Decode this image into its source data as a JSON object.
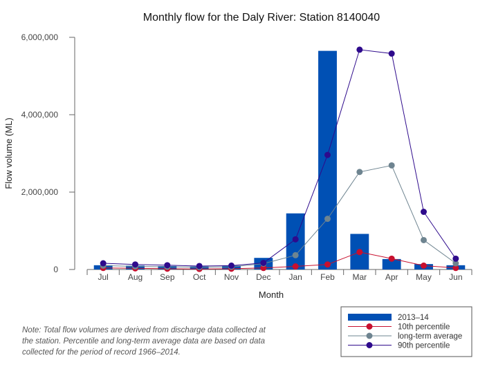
{
  "chart_data": {
    "type": "bar",
    "title": "Monthly flow for the Daly River: Station 8140040",
    "xlabel": "Month",
    "ylabel": "Flow volume (ML)",
    "ylim": [
      0,
      6000000
    ],
    "yticks": [
      {
        "value": 0,
        "label": "0"
      },
      {
        "value": 2000000,
        "label": "2,000,000"
      },
      {
        "value": 4000000,
        "label": "4,000,000"
      },
      {
        "value": 6000000,
        "label": "6,000,000"
      }
    ],
    "categories": [
      "Jul",
      "Aug",
      "Sep",
      "Oct",
      "Nov",
      "Dec",
      "Jan",
      "Feb",
      "Mar",
      "Apr",
      "May",
      "Jun"
    ],
    "grid": false,
    "legend_position": "bottom-right",
    "series": [
      {
        "name": "2013–14",
        "type": "bar",
        "color": "#0050b4",
        "values": [
          110000,
          100000,
          90000,
          80000,
          100000,
          300000,
          1450000,
          5650000,
          920000,
          270000,
          140000,
          110000
        ]
      },
      {
        "name": "10th percentile",
        "type": "line",
        "color": "#c8102e",
        "values": [
          40000,
          30000,
          20000,
          15000,
          20000,
          40000,
          80000,
          130000,
          450000,
          280000,
          100000,
          40000
        ]
      },
      {
        "name": "long-term average",
        "type": "line",
        "color": "#6e8490",
        "values": [
          100000,
          80000,
          70000,
          60000,
          70000,
          150000,
          370000,
          1310000,
          2520000,
          2690000,
          760000,
          160000
        ]
      },
      {
        "name": "90th percentile",
        "type": "line",
        "color": "#2e0a8c",
        "values": [
          160000,
          130000,
          110000,
          90000,
          100000,
          170000,
          780000,
          2960000,
          5680000,
          5580000,
          1490000,
          280000
        ]
      }
    ]
  },
  "note": "Note: Total flow volumes are derived from discharge data collected at the station. Percentile and long-term average data are based on data collected for the period of record 1966–2014."
}
